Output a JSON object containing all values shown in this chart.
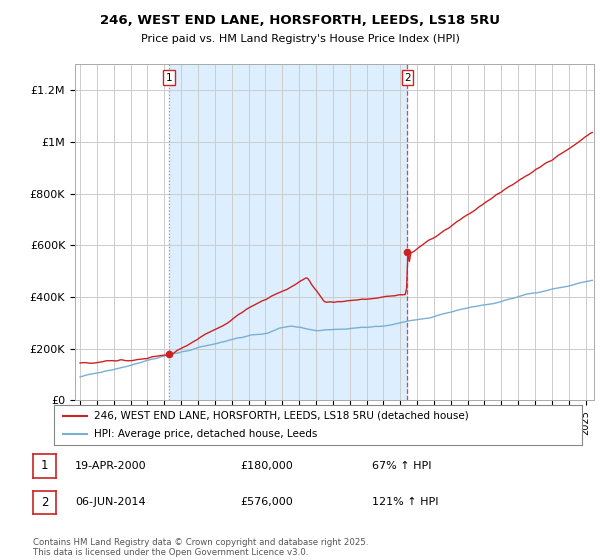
{
  "title_line1": "246, WEST END LANE, HORSFORTH, LEEDS, LS18 5RU",
  "title_line2": "Price paid vs. HM Land Registry's House Price Index (HPI)",
  "ylim": [
    0,
    1300000
  ],
  "xlim_start": 1994.7,
  "xlim_end": 2025.5,
  "grid_color": "#cccccc",
  "background_color": "#ffffff",
  "plot_bg_color": "#ffffff",
  "shade_color": "#ddeeff",
  "sale1_date": 2000.29,
  "sale1_price": 180000,
  "sale1_label": "1",
  "sale2_date": 2014.43,
  "sale2_price": 576000,
  "sale2_label": "2",
  "hpi_line_color": "#7aafd4",
  "price_line_color": "#cc2222",
  "sale_marker_color": "#cc2222",
  "legend_line1": "246, WEST END LANE, HORSFORTH, LEEDS, LS18 5RU (detached house)",
  "legend_line2": "HPI: Average price, detached house, Leeds",
  "annotation1_date": "19-APR-2000",
  "annotation1_price": "£180,000",
  "annotation1_hpi": "67% ↑ HPI",
  "annotation2_date": "06-JUN-2014",
  "annotation2_price": "£576,000",
  "annotation2_hpi": "121% ↑ HPI",
  "footer": "Contains HM Land Registry data © Crown copyright and database right 2025.\nThis data is licensed under the Open Government Licence v3.0.",
  "yticks": [
    0,
    200000,
    400000,
    600000,
    800000,
    1000000,
    1200000
  ],
  "ytick_labels": [
    "£0",
    "£200K",
    "£400K",
    "£600K",
    "£800K",
    "£1M",
    "£1.2M"
  ]
}
